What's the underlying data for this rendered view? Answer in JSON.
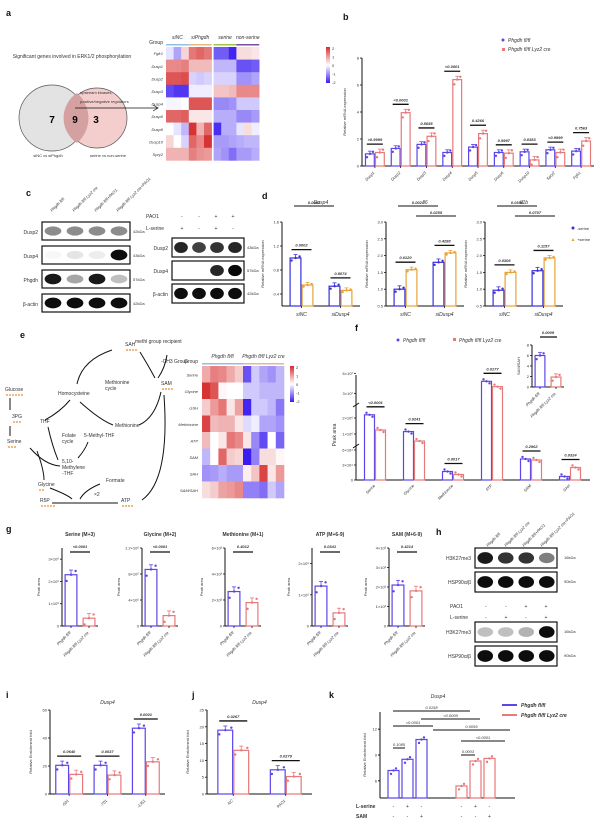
{
  "colors": {
    "wt": "#5b46e8",
    "ko": "#e8797a",
    "minus_serine": "#3a2fd8",
    "plus_serine": "#e8a33a",
    "hm_high": "#d62b2b",
    "hm_mid": "#ffffff",
    "hm_low": "#3a1cf0",
    "text_blue": "#4a7fd6",
    "dots_orange": "#e38a2a"
  },
  "panels": {
    "a": {
      "label": "a",
      "venn": {
        "title": "Significant genes involved in ERK1/2 phosphorylation",
        "left_count": "7",
        "overlap_count": "9",
        "right_count": "3",
        "left_label": "siNC vs siPhgdh",
        "right_label": "serine vs non-serine",
        "arrow_label_1": "upstream kinases,",
        "arrow_label_2": "positive/negative regulators"
      },
      "heatmap": {
        "group_label": "Group",
        "groups": [
          "siNC",
          "siPhgdh",
          "serine",
          "non-serine"
        ],
        "group_colors": [
          "#8fc0e8",
          "#e8b980",
          "#9ac94a",
          "#7d4aa8"
        ],
        "rows": [
          "Fgfr1",
          "Dusp1",
          "Dusp2",
          "Dusp3",
          "Dusp4",
          "Dusp5",
          "Dusp6",
          "Dusp10",
          "Spry2"
        ],
        "scale_ticks": [
          "2",
          "1",
          "0",
          "-1",
          "-2"
        ],
        "values": [
          [
            -0.3,
            -1.0,
            0.5,
            1.6,
            1.8,
            1.6,
            -1.8,
            -1.8,
            -2.4,
            0.4,
            0.4,
            0.3
          ],
          [
            1.4,
            1.4,
            1.5,
            0.8,
            0.8,
            0.8,
            -0.8,
            -0.8,
            -0.8,
            -1.9,
            -1.9,
            -1.8
          ],
          [
            2.0,
            2.0,
            2.1,
            -0.5,
            -0.6,
            -0.5,
            -0.5,
            -0.5,
            -0.5,
            -1.2,
            -1.2,
            -1.0
          ],
          [
            -2.0,
            -2.2,
            -2.2,
            -0.2,
            -0.2,
            -0.2,
            0.7,
            0.7,
            0.8,
            1.4,
            1.4,
            1.4
          ],
          [
            -0.1,
            -0.1,
            0.0,
            2.0,
            2.0,
            2.0,
            -1.3,
            -1.3,
            -1.2,
            -0.6,
            -0.6,
            -0.6
          ],
          [
            1.8,
            1.8,
            1.9,
            0.3,
            0.3,
            0.3,
            -0.9,
            -0.9,
            -0.9,
            -1.3,
            -1.3,
            -1.1
          ],
          [
            0.0,
            -0.3,
            -0.8,
            2.4,
            0.9,
            1.8,
            -2.3,
            -0.9,
            -0.9,
            -0.3,
            0.4,
            -0.2
          ],
          [
            0.5,
            0.0,
            -0.5,
            1.8,
            1.4,
            2.4,
            -1.1,
            -1.1,
            -1.0,
            -0.9,
            -0.8,
            -0.8
          ],
          [
            0.9,
            0.9,
            0.9,
            1.5,
            1.3,
            1.2,
            -1.0,
            -1.2,
            -1.6,
            -1.1,
            -1.1,
            -0.9
          ]
        ]
      }
    },
    "b": {
      "label": "b",
      "legend": [
        "Phgdh fl/fl",
        "Phgdh fl/fl Lyz2 cre"
      ],
      "ylabel": "Relative mRNA expression",
      "yticks": [
        "0",
        "2",
        "4",
        "6",
        "8"
      ],
      "pvals": [
        ">0.9999",
        "<0.0001",
        "0.8655",
        "<0.0001",
        "0.4266",
        "0.9997",
        "0.8383",
        ">0.9999",
        "0.7563"
      ]
    },
    "c": {
      "label": "c",
      "lanes": [
        "Phgdh fl/fl",
        "Phgdh fl/fl Lyz2 cre",
        "Phgdh fl/fl+PAO1",
        "Phgdh fl/fl Lyz2 cre+PAO1"
      ],
      "blot1_rows": [
        {
          "name": "Dusp2",
          "kda": "42kDa"
        },
        {
          "name": "Dusp4",
          "kda": "43kDa"
        },
        {
          "name": "Phgdh",
          "kda": "57kDa"
        },
        {
          "name": "β-actin",
          "kda": "42kDa"
        }
      ],
      "blot2_conditions": [
        {
          "name": "PAO1",
          "values": [
            "-",
            "-",
            "+",
            "+"
          ]
        },
        {
          "name": "L-serine",
          "values": [
            "+",
            "-",
            "+",
            "-"
          ]
        }
      ],
      "blot2_rows": [
        {
          "name": "Dusp2",
          "kda": "43kDa"
        },
        {
          "name": "Dusp4",
          "kda": "57kDa"
        },
        {
          "name": "β-actin",
          "kda": "42kDa"
        }
      ]
    },
    "d": {
      "label": "d",
      "legend": [
        "-serine",
        "+serine"
      ],
      "ylabel": "Relative mRNA expression",
      "xcats": [
        "siNC",
        "siDusp4"
      ]
    },
    "e": {
      "label": "e",
      "pathway": {
        "nodes": [
          "SAH",
          "methl group recipient",
          "-CH3 Group",
          "SAM",
          "Methionine cycle",
          "Homocysteine",
          "Methionine",
          "Glucose",
          "3PG",
          "Serine",
          "THF",
          "Folate cycle",
          "5-Methyl-THF",
          "5,10-Methylene-THF",
          "Glycine",
          "Formate",
          "×2",
          "R5P",
          "ATP"
        ]
      },
      "heatmap": {
        "group_label": "Group",
        "groups": [
          "Phgdh fl/fl",
          "Phgdh fl/fl Lyz2 cre"
        ],
        "group_colors": [
          "#8fc0e8",
          "#e8b980"
        ],
        "rows": [
          "Serine",
          "Glycine",
          "GSH",
          "Methionine",
          "ATP",
          "SAM",
          "SAH",
          "SAM/SAH"
        ],
        "scale_ticks": [
          "2",
          "1",
          "0",
          "-1",
          "-2"
        ],
        "values": [
          [
            1.0,
            1.5,
            1.4,
            1.0,
            0.6,
            -1.9,
            -0.6,
            -1.0,
            -1.2,
            -0.8
          ],
          [
            2.4,
            2.0,
            0.1,
            0.0,
            0.0,
            -0.6,
            -0.6,
            -0.8,
            -0.8,
            -0.8
          ],
          [
            0.6,
            1.2,
            1.6,
            0.3,
            1.1,
            -2.4,
            -0.6,
            -0.6,
            -0.8,
            -1.5
          ],
          [
            2.2,
            0.8,
            0.9,
            0.9,
            0.3,
            -0.4,
            -0.2,
            -1.0,
            -1.0,
            -1.2
          ],
          [
            0.8,
            0.0,
            0.3,
            1.6,
            1.4,
            0.3,
            -1.3,
            -2.0,
            0.0,
            -1.7
          ],
          [
            -0.8,
            0.0,
            1.8,
            0.6,
            0.5,
            -2.5,
            -1.4,
            0.4,
            0.4,
            0.1
          ],
          [
            -1.2,
            -1.1,
            -0.9,
            -1.1,
            -1.1,
            0.2,
            0.7,
            2.2,
            0.3,
            1.2
          ],
          [
            0.4,
            0.6,
            1.1,
            1.2,
            1.4,
            -1.4,
            -1.4,
            -1.6,
            -0.6,
            -1.0
          ]
        ]
      }
    },
    "f": {
      "label": "f",
      "legend": [
        "Phgdh fl/fl",
        "Phgdh fl/fl Lyz2 cre"
      ],
      "ylabel": "Peak area",
      "inset_ylabel": "SAM/SAH",
      "inset_pval": "0.0009"
    },
    "g": {
      "label": "g"
    },
    "h": {
      "label": "h",
      "lanes": [
        "Phgdh fl/fl",
        "Phgdh fl/fl Lyz2 cre",
        "Phgdh fl/fl+PAO1",
        "Phgdh fl/fl Lyz2 cre+PAO1"
      ],
      "blot1_rows": [
        {
          "name": "H3K27me3",
          "kda": "16kDa"
        },
        {
          "name": "HSP90α/β",
          "kda": "90kDa"
        }
      ],
      "blot2_conditions": [
        {
          "name": "PAO1",
          "values": [
            "-",
            "-",
            "+",
            "+"
          ]
        },
        {
          "name": "L-serine",
          "values": [
            "-",
            "+",
            "-",
            "+"
          ]
        }
      ],
      "blot2_rows": [
        {
          "name": "H3K27me3",
          "kda": "16kDa"
        },
        {
          "name": "HSP90α/β",
          "kda": "90kDa"
        }
      ]
    },
    "i": {
      "label": "i"
    },
    "j": {
      "label": "j"
    },
    "k": {
      "label": "k",
      "legend": [
        "Phgdh fl/fl",
        "Phgdh fl/fl Lyz2 cre"
      ],
      "conditions": [
        {
          "name": "L-serine",
          "values": [
            "-",
            "+",
            "-",
            "-",
            "+",
            "-"
          ]
        },
        {
          "name": "SAM",
          "values": [
            "-",
            "-",
            "+",
            "-",
            "-",
            "+"
          ]
        }
      ]
    }
  },
  "chart_data": [
    {
      "id": "b",
      "type": "bar",
      "title": "",
      "xlabel": "",
      "ylabel": "Relative mRNA expression",
      "ylim": [
        0,
        8
      ],
      "categories": [
        "Dusp1",
        "Dusp2",
        "Dusp3",
        "Dusp4",
        "Dusp5",
        "Dusp6",
        "Dusp10",
        "Spry2",
        "Fgfr1"
      ],
      "series": [
        {
          "name": "Phgdh fl/fl",
          "values": [
            0.9,
            1.3,
            1.6,
            1.0,
            1.4,
            1.0,
            1.05,
            1.2,
            1.1
          ]
        },
        {
          "name": "Phgdh fl/fl Lyz2 cre",
          "values": [
            1.0,
            3.95,
            2.2,
            6.4,
            2.4,
            0.95,
            0.45,
            1.0,
            1.85
          ]
        }
      ],
      "pvals": [
        ">0.9999",
        "<0.0001",
        "0.8655",
        "<0.0001",
        "0.4266",
        "0.9997",
        "0.8383",
        ">0.9999",
        "0.7563"
      ],
      "legend": "top-right"
    },
    {
      "id": "d1",
      "type": "bar",
      "title": "Dusp4",
      "ylabel": "Relative mRNA expression",
      "ylim": [
        0.2,
        1.6
      ],
      "yticks": [
        "0.4",
        "0.8",
        "1.2",
        "1.6"
      ],
      "categories": [
        "siNC",
        "siDusp4"
      ],
      "series": [
        {
          "name": "-serine",
          "values": [
            1.0,
            0.53
          ]
        },
        {
          "name": "+serine",
          "values": [
            0.55,
            0.46
          ]
        }
      ],
      "annotations": [
        {
          "text": "0.0002",
          "pair": "siNC"
        },
        {
          "text": "0.8074",
          "pair": "siDusp4"
        },
        {
          "text": "0.0002",
          "pair": "siNC-serine vs siDusp4-serine"
        }
      ]
    },
    {
      "id": "d2",
      "type": "bar",
      "title": "Il6",
      "ylabel": "Relative mRNA expression",
      "ylim": [
        0.5,
        3.0
      ],
      "yticks": [
        "0.5",
        "1.0",
        "1.5",
        "2.0",
        "2.5",
        "3.0"
      ],
      "categories": [
        "siNC",
        "siDusp4"
      ],
      "series": [
        {
          "name": "-serine",
          "values": [
            1.0,
            1.8
          ]
        },
        {
          "name": "+serine",
          "values": [
            1.58,
            2.08
          ]
        }
      ],
      "annotations": [
        {
          "text": "0.0120",
          "pair": "siNC"
        },
        {
          "text": "0.4288",
          "pair": "siDusp4"
        },
        {
          "text": "0.0021",
          "pair": "-serine"
        },
        {
          "text": "0.0255",
          "pair": "+serine"
        }
      ]
    },
    {
      "id": "d3",
      "type": "bar",
      "title": "Il1b",
      "ylabel": "Relative mRNA expression",
      "ylim": [
        0.5,
        3.0
      ],
      "yticks": [
        "0.5",
        "1.0",
        "1.5",
        "2.0",
        "2.5",
        "3.0"
      ],
      "categories": [
        "siNC",
        "siDusp4"
      ],
      "series": [
        {
          "name": "-serine",
          "values": [
            0.97,
            1.55
          ]
        },
        {
          "name": "+serine",
          "values": [
            1.5,
            1.93
          ]
        }
      ],
      "annotations": [
        {
          "text": "0.0306",
          "pair": "siNC"
        },
        {
          "text": "0.1157",
          "pair": "siDusp4"
        },
        {
          "text": "0.0356",
          "pair": "-serine"
        },
        {
          "text": "0.0707",
          "pair": "+serine"
        }
      ],
      "legend": "right"
    },
    {
      "id": "f",
      "type": "bar",
      "ylabel": "Peak area",
      "yticks": [
        "0",
        "3×10⁴",
        "6×10⁴",
        "1×10⁶",
        "2×10⁶",
        "3×10⁷",
        "6×10⁷"
      ],
      "broken_axis": true,
      "categories": [
        "Serine",
        "Glycine",
        "Methionine",
        "ATP",
        "SAM",
        "SAH"
      ],
      "series": [
        {
          "name": "Phgdh fl/fl",
          "values": [
            2200000,
            1150000,
            17000,
            48000000,
            42000,
            7000
          ]
        },
        {
          "name": "Phgdh fl/fl Lyz2 cre",
          "values": [
            1250000,
            560000,
            11000,
            40000000,
            40000,
            25000
          ]
        }
      ],
      "pvals": [
        "<0.0001",
        "0.0241",
        "0.0017",
        "0.0177",
        "0.2962",
        "0.0324"
      ],
      "legend": "top"
    },
    {
      "id": "f_inset",
      "type": "bar",
      "ylabel": "SAM/SAH",
      "ylim": [
        0,
        8
      ],
      "yticks": [
        "0",
        "2",
        "4",
        "6",
        "8"
      ],
      "categories": [
        "Phgdh fl/fl",
        "Phgdh fl/fl Lyz2 cre"
      ],
      "values": [
        6.0,
        1.9
      ],
      "pvals": [
        "0.0009"
      ]
    },
    {
      "id": "g1",
      "type": "bar",
      "title": "Serine (M+3)",
      "ylabel": "Peak area",
      "ylim": [
        0,
        3500000.0
      ],
      "yticks": [
        "0",
        "1×10⁶",
        "2×10⁶",
        "3×10⁶"
      ],
      "categories": [
        "Phgdh fl/fl",
        "Phgdh fl/fl Lyz2 cre"
      ],
      "values": [
        2300000,
        350000
      ],
      "pvals": [
        "<0.0001"
      ]
    },
    {
      "id": "g2",
      "type": "bar",
      "title": "Glycine (M+2)",
      "ylabel": "Peak area",
      "ylim": [
        0,
        1200000.0
      ],
      "yticks": [
        "0",
        "4×10⁵",
        "8×10⁵",
        "1.2×10⁶"
      ],
      "categories": [
        "Phgdh fl/fl",
        "Phgdh fl/fl Lyz2 cre"
      ],
      "values": [
        870000,
        160000
      ],
      "pvals": [
        "<0.0001"
      ]
    },
    {
      "id": "g3",
      "type": "bar",
      "title": "Methionine (M+1)",
      "ylabel": "Peak area",
      "ylim": [
        0,
        6000.0
      ],
      "yticks": [
        "0",
        "2×10³",
        "4×10³",
        "6×10³"
      ],
      "categories": [
        "Phgdh fl/fl",
        "Phgdh fl/fl Lyz2 cre"
      ],
      "values": [
        2650,
        1800
      ],
      "pvals": [
        "0.4012"
      ]
    },
    {
      "id": "g4",
      "type": "bar",
      "title": "ATP (M+6-9)",
      "ylabel": "Peak area",
      "ylim": [
        0,
        250000.0
      ],
      "yticks": [
        "0",
        "1×10⁵",
        "2×10⁵"
      ],
      "categories": [
        "Phgdh fl/fl",
        "Phgdh fl/fl Lyz2 cre"
      ],
      "values": [
        128000,
        42000
      ],
      "pvals": [
        "0.0341"
      ]
    },
    {
      "id": "g5",
      "type": "bar",
      "title": "SAM (M+6-9)",
      "ylabel": "Peak area",
      "ylim": [
        0,
        4000.0
      ],
      "yticks": [
        "0",
        "1×10³",
        "2×10³",
        "3×10³",
        "4×10³"
      ],
      "categories": [
        "Phgdh fl/fl",
        "Phgdh fl/fl Lyz2 cre"
      ],
      "values": [
        2100,
        1800
      ],
      "pvals": [
        "0.4214"
      ]
    },
    {
      "id": "i",
      "type": "bar",
      "title": "Dusp4",
      "ylabel": "Relative Enrichment fold",
      "ylim": [
        0,
        60
      ],
      "yticks": [
        "0",
        "20",
        "40",
        "60"
      ],
      "categories": [
        "-601",
        "-701",
        "-1351"
      ],
      "series": [
        {
          "name": "Phgdh fl/fl",
          "values": [
            20.5,
            20.5,
            47
          ]
        },
        {
          "name": "Phgdh fl/fl Lyz2 cre",
          "values": [
            14,
            13.5,
            23
          ]
        }
      ],
      "pvals": [
        "0.0640",
        "0.0037",
        "0.0001"
      ]
    },
    {
      "id": "j",
      "type": "bar",
      "title": "Dusp4",
      "ylabel": "Relative Enrichment fold",
      "ylim": [
        0,
        25
      ],
      "yticks": [
        "0",
        "5",
        "10",
        "15",
        "20",
        "25"
      ],
      "categories": [
        "NC",
        "PAO1"
      ],
      "series": [
        {
          "name": "Phgdh fl/fl",
          "values": [
            19,
            7.2
          ]
        },
        {
          "name": "Phgdh fl/fl Lyz2 cre",
          "values": [
            13,
            5.2
          ]
        }
      ],
      "pvals": [
        "0.0267",
        "0.0279"
      ]
    },
    {
      "id": "k",
      "type": "bar",
      "title": "Dusp4",
      "ylabel": "Relative Enrichment fold",
      "ylim": [
        4,
        14
      ],
      "yticks": [
        "6",
        "9",
        "12"
      ],
      "categories": [
        "WT ctrl",
        "WT L-serine",
        "WT SAM",
        "KO ctrl",
        "KO L-serine",
        "KO SAM"
      ],
      "values": [
        7.2,
        8.5,
        10.8,
        5.4,
        8.3,
        8.6
      ],
      "colors": [
        "wt",
        "wt",
        "wt",
        "ko",
        "ko",
        "ko"
      ],
      "annotations": [
        "0.0158",
        "<0.0009",
        "<0.0001",
        "0.0059",
        "0.1085",
        "<0.0001",
        "0.0003"
      ],
      "legend": "top-right"
    }
  ]
}
